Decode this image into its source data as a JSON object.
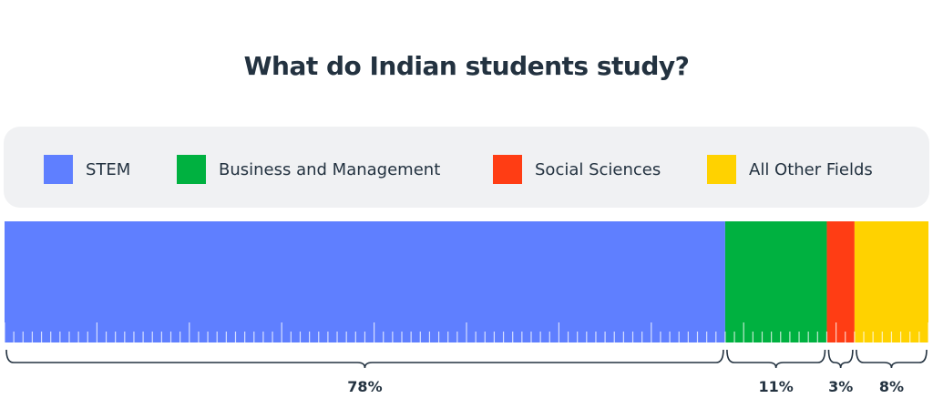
{
  "chart_data": {
    "type": "bar",
    "orientation": "stacked-horizontal",
    "title": "What do Indian students study?",
    "categories": [
      "STEM",
      "Business and Management",
      "Social Sciences",
      "All Other Fields"
    ],
    "values": [
      78,
      11,
      3,
      8
    ],
    "value_labels": [
      "78%",
      "11%",
      "3%",
      "8%"
    ],
    "colors": [
      "#5f7fff",
      "#00b140",
      "#ff3d14",
      "#ffd200"
    ],
    "legend_position": "top",
    "unit": "%"
  }
}
